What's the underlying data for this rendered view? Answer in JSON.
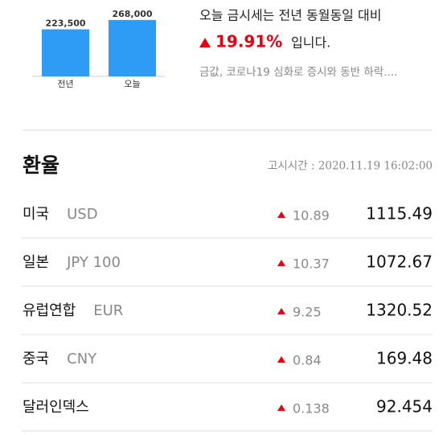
{
  "chart_data": {
    "type": "bar",
    "categories": [
      "전년",
      "오늘"
    ],
    "values": [
      223500,
      268000
    ],
    "value_labels": [
      "223,500",
      "268,000"
    ],
    "color": "#2e9cf4",
    "ylim": [
      0,
      275000
    ]
  },
  "summary": {
    "line1": "오늘 금시세는 전년 동월동일 대비",
    "change": "19.91%",
    "suffix": "입니다.",
    "news": "금값, 코로나19 심화로 증시와 동반 하락...."
  },
  "table": {
    "title": "환율",
    "time": "고시시간 : 2020.11.19 16:02:00",
    "rows": [
      [
        "미국",
        "USD",
        "10.89",
        "1115.49"
      ],
      [
        "일본",
        "JPY 100",
        "10.37",
        "1072.67"
      ],
      [
        "유럽연합",
        "EUR",
        "9.25",
        "1320.52"
      ],
      [
        "중국",
        "CNY",
        "0.84",
        "169.48"
      ],
      [
        "달러인덱스",
        "",
        "0.138",
        "92.454"
      ]
    ]
  }
}
